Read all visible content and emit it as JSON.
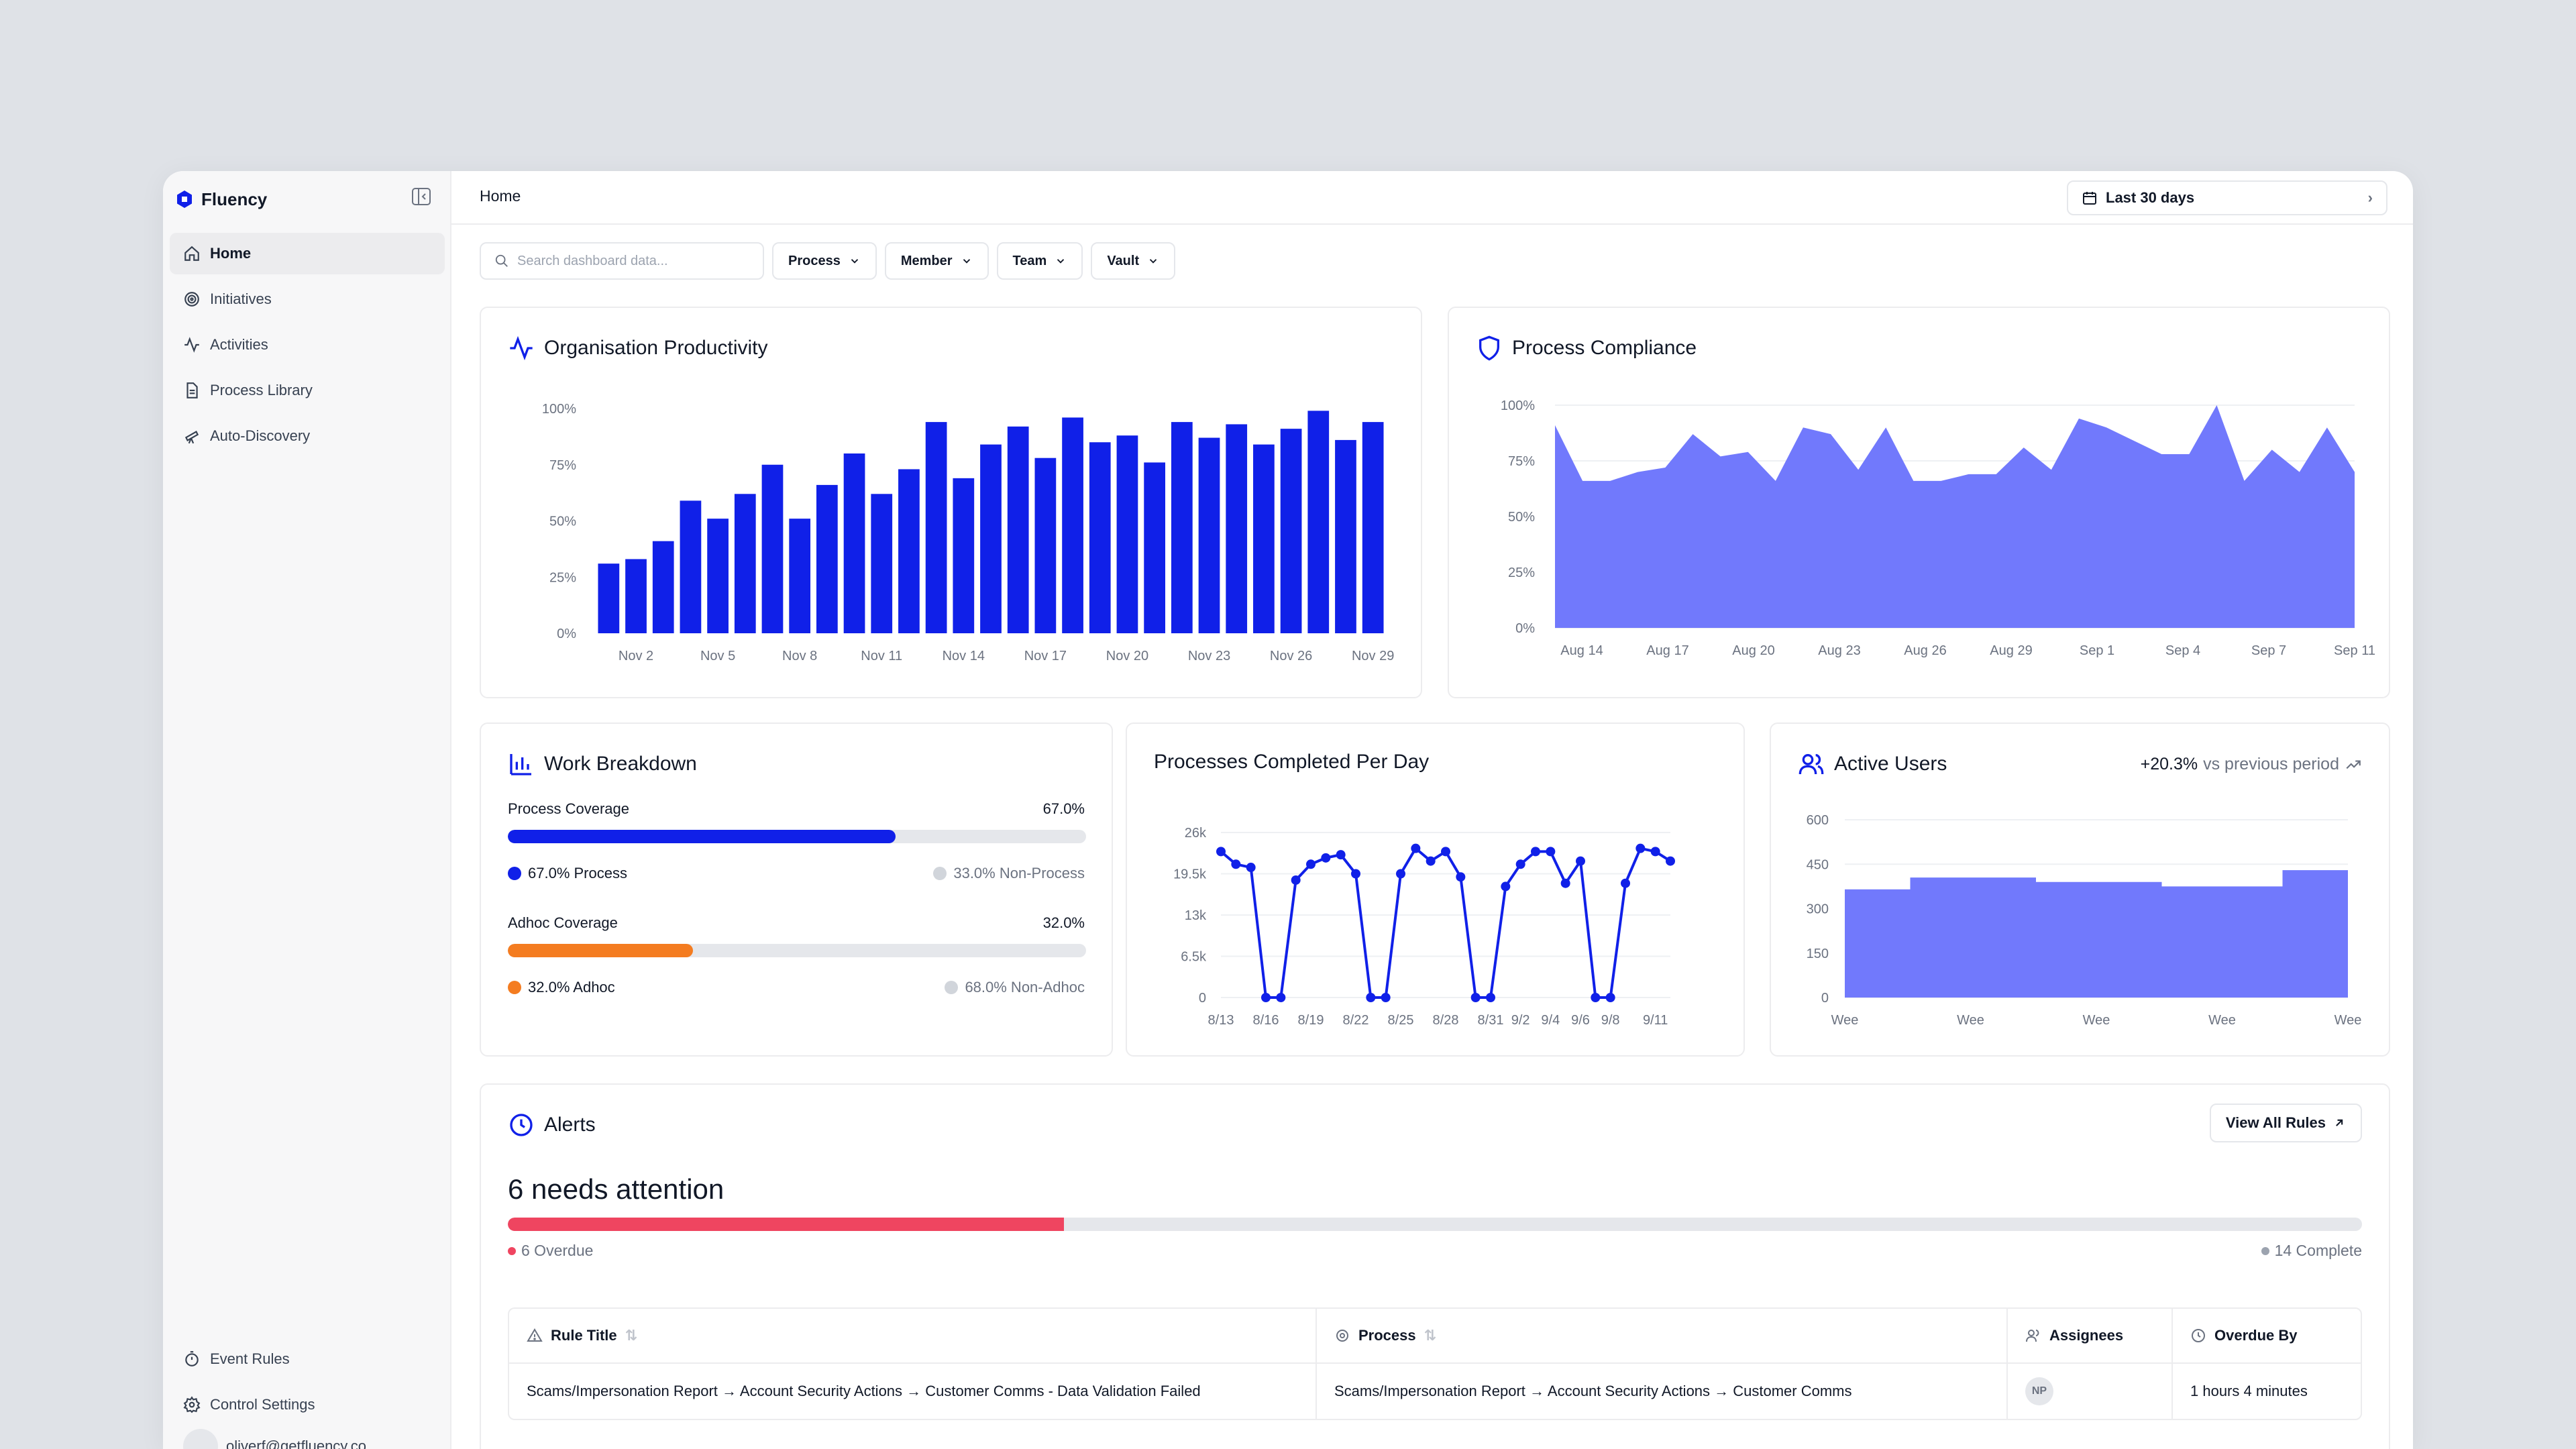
{
  "app": {
    "name": "Fluency"
  },
  "sidebar": {
    "items": [
      {
        "label": "Home",
        "icon": "home-icon"
      },
      {
        "label": "Initiatives",
        "icon": "target-icon"
      },
      {
        "label": "Activities",
        "icon": "activity-icon"
      },
      {
        "label": "Process Library",
        "icon": "document-icon"
      },
      {
        "label": "Auto-Discovery",
        "icon": "telescope-icon"
      }
    ],
    "bottom": [
      {
        "label": "Event Rules",
        "icon": "timer-icon"
      },
      {
        "label": "Control Settings",
        "icon": "gear-icon"
      }
    ],
    "user_email": "oliverf@getfluency.co"
  },
  "header": {
    "breadcrumb": "Home",
    "date_range": "Last 30 days"
  },
  "filters": {
    "search_placeholder": "Search dashboard data...",
    "options": [
      "Process",
      "Member",
      "Team",
      "Vault"
    ]
  },
  "accent": "#1020e8",
  "org_productivity": {
    "title": "Organisation Productivity",
    "chart_data": {
      "type": "bar",
      "title": "Organisation Productivity",
      "ylim": [
        0,
        100
      ],
      "yticks": [
        "100%",
        "75%",
        "50%",
        "25%",
        "0%"
      ],
      "xticks": [
        "Nov 2",
        "Nov 5",
        "Nov 8",
        "Nov 11",
        "Nov 14",
        "Nov 17",
        "Nov 20",
        "Nov 23",
        "Nov 26",
        "Nov 29"
      ],
      "values": [
        31,
        33,
        41,
        59,
        51,
        62,
        75,
        51,
        66,
        80,
        62,
        73,
        94,
        69,
        84,
        92,
        78,
        96,
        85,
        88,
        76,
        94,
        87,
        93,
        84,
        91,
        99,
        86,
        94
      ],
      "color": "#1020e8"
    }
  },
  "process_compliance": {
    "title": "Process Compliance",
    "chart_data": {
      "type": "area",
      "title": "Process Compliance",
      "ylim": [
        0,
        100
      ],
      "yticks": [
        "100%",
        "75%",
        "50%",
        "25%",
        "0%"
      ],
      "xticks": [
        "Aug 14",
        "Aug 17",
        "Aug 20",
        "Aug 23",
        "Aug 26",
        "Aug 29",
        "Sep 1",
        "Sep 4",
        "Sep 7",
        "Sep 11"
      ],
      "values": [
        91,
        66,
        66,
        70,
        72,
        87,
        77,
        79,
        66,
        90,
        87,
        71,
        90,
        66,
        66,
        69,
        69,
        81,
        71,
        94,
        90,
        84,
        78,
        78,
        100,
        66,
        80,
        70,
        90,
        70
      ],
      "color": "#7179fc"
    }
  },
  "work_breakdown": {
    "title": "Work Breakdown",
    "process_label": "Process Coverage",
    "process_value": "67.0%",
    "process_fraction": 0.67,
    "process_legend": "67.0% Process",
    "non_process_legend": "33.0% Non-Process",
    "adhoc_label": "Adhoc Coverage",
    "adhoc_value": "32.0%",
    "adhoc_fraction": 0.32,
    "adhoc_legend": "32.0% Adhoc",
    "non_adhoc_legend": "68.0% Non-Adhoc",
    "colors": {
      "process": "#1020e8",
      "adhoc": "#f47c20",
      "rest": "#d1d5db"
    }
  },
  "processes_per_day": {
    "title": "Processes Completed Per Day",
    "chart_data": {
      "type": "line",
      "title": "Processes Completed Per Day",
      "ylim": [
        0,
        26000
      ],
      "yticks": [
        "26k",
        "19.5k",
        "13k",
        "6.5k",
        "0"
      ],
      "xticks": [
        "8/13",
        "8/16",
        "8/19",
        "8/22",
        "8/25",
        "8/28",
        "8/31",
        "9/2",
        "9/4",
        "9/6",
        "9/8",
        "9/11"
      ],
      "values": [
        23000,
        21000,
        20500,
        0,
        0,
        18500,
        21000,
        22000,
        22500,
        19500,
        0,
        0,
        19500,
        23500,
        21500,
        23000,
        19000,
        0,
        0,
        17500,
        21000,
        23000,
        23000,
        18000,
        21500,
        0,
        0,
        18000,
        23500,
        23000,
        21500
      ],
      "color": "#1020e8"
    }
  },
  "active_users": {
    "title": "Active Users",
    "delta": "+20.3%",
    "delta_label": "vs previous period",
    "chart_data": {
      "type": "area",
      "title": "Active Users",
      "ylim": [
        0,
        600
      ],
      "yticks": [
        "600",
        "450",
        "300",
        "150",
        "0"
      ],
      "xticks": [
        "Wee",
        "Wee",
        "Wee",
        "Wee",
        "Wee"
      ],
      "values": [
        365,
        405,
        390,
        375,
        430
      ],
      "color": "#7179fc"
    }
  },
  "alerts": {
    "title": "Alerts",
    "view_all": "View All Rules",
    "needs_attention": "6 needs attention",
    "overdue_label": "6 Overdue",
    "complete_label": "14 Complete",
    "overdue_fraction": 0.3,
    "table": {
      "headers": [
        "Rule Title",
        "Process",
        "Assignees",
        "Overdue By"
      ],
      "rows": [
        {
          "rule_title": "Scams/Impersonation Report → Account Security Actions → Customer Comms - Data Validation Failed",
          "process": "Scams/Impersonation Report → Account Security Actions → Customer Comms",
          "assignee_initials": "NP",
          "overdue_by": "1 hours 4 minutes"
        }
      ]
    }
  }
}
